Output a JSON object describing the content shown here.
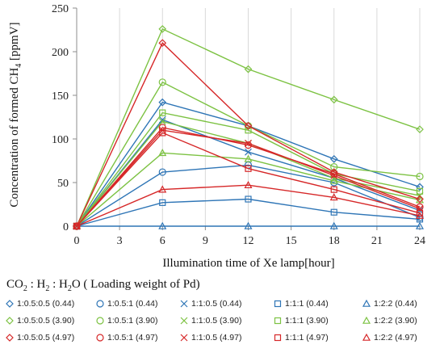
{
  "chart_data": {
    "type": "line",
    "xlabel": "Illumination time of Xe lamp[hour]",
    "ylabel": "Concentration of formed CH4 [ppmV]",
    "ylabel_parts": {
      "before": "Concentration of formed CH",
      "sub": "4",
      "after": " [ppmV]"
    },
    "xlim": [
      0,
      24
    ],
    "ylim": [
      0,
      250
    ],
    "xticks": [
      0,
      3,
      6,
      9,
      12,
      15,
      18,
      21,
      24
    ],
    "yticks": [
      0,
      50,
      100,
      150,
      200,
      250
    ],
    "grid": "vertical",
    "legend_position": "bottom",
    "x": [
      0,
      6,
      12,
      18,
      24
    ],
    "series": [
      {
        "name": "1:0.5:0.5 (0.44)",
        "color": "#2E75B6",
        "marker": "diamond",
        "values": [
          0,
          142,
          115,
          77,
          45
        ]
      },
      {
        "name": "1:0.5:1 (0.44)",
        "color": "#2E75B6",
        "marker": "circle",
        "values": [
          0,
          62,
          70,
          50,
          10
        ]
      },
      {
        "name": "1:1:0.5 (0.44)",
        "color": "#2E75B6",
        "marker": "x",
        "values": [
          0,
          122,
          85,
          55,
          18
        ]
      },
      {
        "name": "1:1:1 (0.44)",
        "color": "#2E75B6",
        "marker": "square",
        "values": [
          0,
          27,
          31,
          16,
          8
        ]
      },
      {
        "name": "1:2:2 (0.44)",
        "color": "#2E75B6",
        "marker": "triangle",
        "values": [
          0,
          0,
          0,
          0,
          0
        ]
      },
      {
        "name": "1:0.5:0.5 (3.90)",
        "color": "#7CC242",
        "marker": "diamond",
        "values": [
          0,
          226,
          180,
          145,
          111
        ]
      },
      {
        "name": "1:0.5:1 (3.90)",
        "color": "#7CC242",
        "marker": "circle",
        "values": [
          0,
          165,
          115,
          68,
          57
        ]
      },
      {
        "name": "1:1:0.5 (3.90)",
        "color": "#7CC242",
        "marker": "x",
        "values": [
          0,
          120,
          95,
          55,
          35
        ]
      },
      {
        "name": "1:1:1 (3.90)",
        "color": "#7CC242",
        "marker": "square",
        "values": [
          0,
          130,
          110,
          60,
          40
        ]
      },
      {
        "name": "1:2:2 (3.90)",
        "color": "#7CC242",
        "marker": "triangle",
        "values": [
          0,
          84,
          77,
          52,
          30
        ]
      },
      {
        "name": "1:0.5:0.5 (4.97)",
        "color": "#D62728",
        "marker": "diamond",
        "values": [
          0,
          210,
          115,
          62,
          31
        ]
      },
      {
        "name": "1:0.5:1 (4.97)",
        "color": "#D62728",
        "marker": "circle",
        "values": [
          0,
          113,
          93,
          60,
          22
        ]
      },
      {
        "name": "1:1:0.5 (4.97)",
        "color": "#D62728",
        "marker": "x",
        "values": [
          0,
          110,
          95,
          58,
          20
        ]
      },
      {
        "name": "1:1:1 (4.97)",
        "color": "#D62728",
        "marker": "square",
        "values": [
          0,
          107,
          66,
          42,
          15
        ]
      },
      {
        "name": "1:2:2 (4.97)",
        "color": "#D62728",
        "marker": "triangle",
        "values": [
          0,
          42,
          47,
          33,
          12
        ]
      }
    ]
  },
  "legend_title": {
    "parts": [
      {
        "text": "CO",
        "sub": "2"
      },
      {
        "text": " : H",
        "sub": "2"
      },
      {
        "text": " : H",
        "sub": "2"
      },
      {
        "text": "O ( Loading weight of Pd)",
        "sub": ""
      }
    ]
  }
}
